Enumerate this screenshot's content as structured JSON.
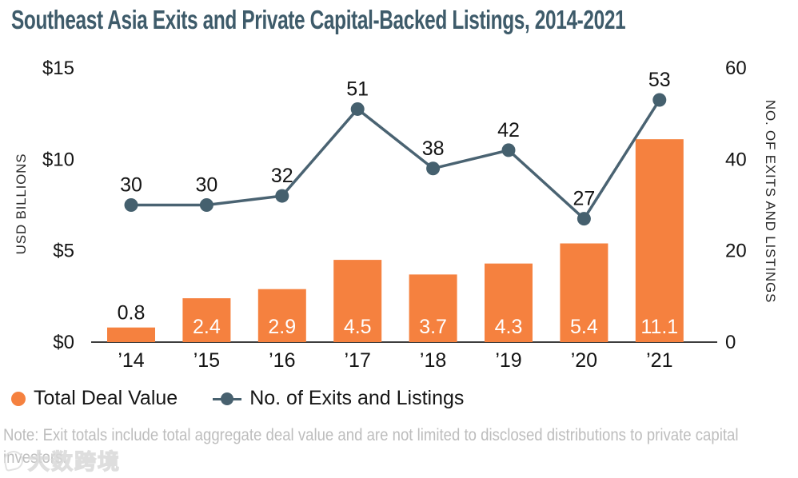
{
  "header": {
    "title": "Southeast Asia Exits and Private Capital-Backed Listings, 2014-2021"
  },
  "chart_data": {
    "type": "bar+line",
    "title": "Southeast Asia Exits and Private Capital-Backed Listings, 2014-2021",
    "categories": [
      "’14",
      "’15",
      "’16",
      "’17",
      "’18",
      "’19",
      "’20",
      "’21"
    ],
    "series": [
      {
        "name": "Total Deal Value",
        "type": "bar",
        "axis": "left",
        "values": [
          0.8,
          2.4,
          2.9,
          4.5,
          3.7,
          4.3,
          5.4,
          11.1
        ],
        "labels": [
          "0.8",
          "2.4",
          "2.9",
          "4.5",
          "3.7",
          "4.3",
          "5.4",
          "11.1"
        ],
        "color": "#f5813f"
      },
      {
        "name": "No. of Exits and Listings",
        "type": "line",
        "axis": "right",
        "values": [
          30,
          30,
          32,
          51,
          38,
          42,
          27,
          53
        ],
        "labels": [
          "30",
          "30",
          "32",
          "51",
          "38",
          "42",
          "27",
          "53"
        ],
        "color": "#4a6372"
      }
    ],
    "left_axis": {
      "label": "USD BILLIONS",
      "ticks": [
        "$0",
        "$5",
        "$10",
        "$15"
      ],
      "tick_values": [
        0,
        5,
        10,
        15
      ],
      "range": [
        0,
        15
      ]
    },
    "right_axis": {
      "label": "NO. OF EXITS AND LISTINGS",
      "ticks": [
        "0",
        "20",
        "40",
        "60"
      ],
      "tick_values": [
        0,
        20,
        40,
        60
      ],
      "range": [
        0,
        60
      ]
    },
    "grid": false,
    "legend_position": "bottom-left"
  },
  "legend": {
    "items": [
      {
        "label": "Total Deal Value",
        "marker": "dot",
        "color": "#f5813f"
      },
      {
        "label": "No. of Exits and Listings",
        "marker": "line-dot",
        "color": "#48616f"
      }
    ]
  },
  "note": {
    "text": "Note: Exit totals include total aggregate deal value and are not limited to disclosed distributions to private capital investors."
  },
  "watermark": {
    "text": "大数跨境",
    "logo": "swirl-logo"
  },
  "colors": {
    "bar_orange": "#f5813f",
    "line_slate": "#4a6372",
    "dot_slate": "#45606e",
    "title_slate": "#3e5b6a",
    "note_gray": "#bdbdbd",
    "axis_black": "#141414"
  }
}
